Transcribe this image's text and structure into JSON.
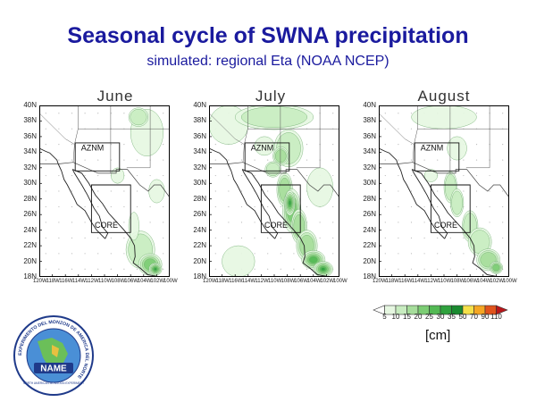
{
  "title": "Seasonal cycle of SWNA precipitation",
  "subtitle": "simulated: regional Eta (NOAA NCEP)",
  "panels": [
    {
      "title": "June"
    },
    {
      "title": "July"
    },
    {
      "title": "August"
    }
  ],
  "boxes": {
    "aznm": "AZNM",
    "core": "CORE"
  },
  "lat_ticks": [
    "40N",
    "38N",
    "36N",
    "34N",
    "32N",
    "30N",
    "28N",
    "26N",
    "24N",
    "22N",
    "20N",
    "18N"
  ],
  "lon_ticks": [
    "120W",
    "118W",
    "116W",
    "114W",
    "112W",
    "110W",
    "108W",
    "106W",
    "104W",
    "102W",
    "100W"
  ],
  "colorbar": {
    "labels": [
      "5",
      "10",
      "15",
      "20",
      "25",
      "30",
      "35",
      "50",
      "70",
      "90",
      "110"
    ],
    "unit": "[cm]",
    "colors": [
      "#ffffff",
      "#e6f7e1",
      "#c8ecc0",
      "#a6dd9b",
      "#7ccd74",
      "#53b954",
      "#2fa23e",
      "#1a8a30",
      "#f5e04a",
      "#f5a623",
      "#e0531c",
      "#b8161a"
    ]
  },
  "logo": {
    "ring_text": "EXPERIMENTO DEL MONZON DE AMERICA DEL NORTE",
    "center_text": "NAME",
    "sub_text": "NORTH AMERICAN MONSOON EXPERIMENT"
  }
}
